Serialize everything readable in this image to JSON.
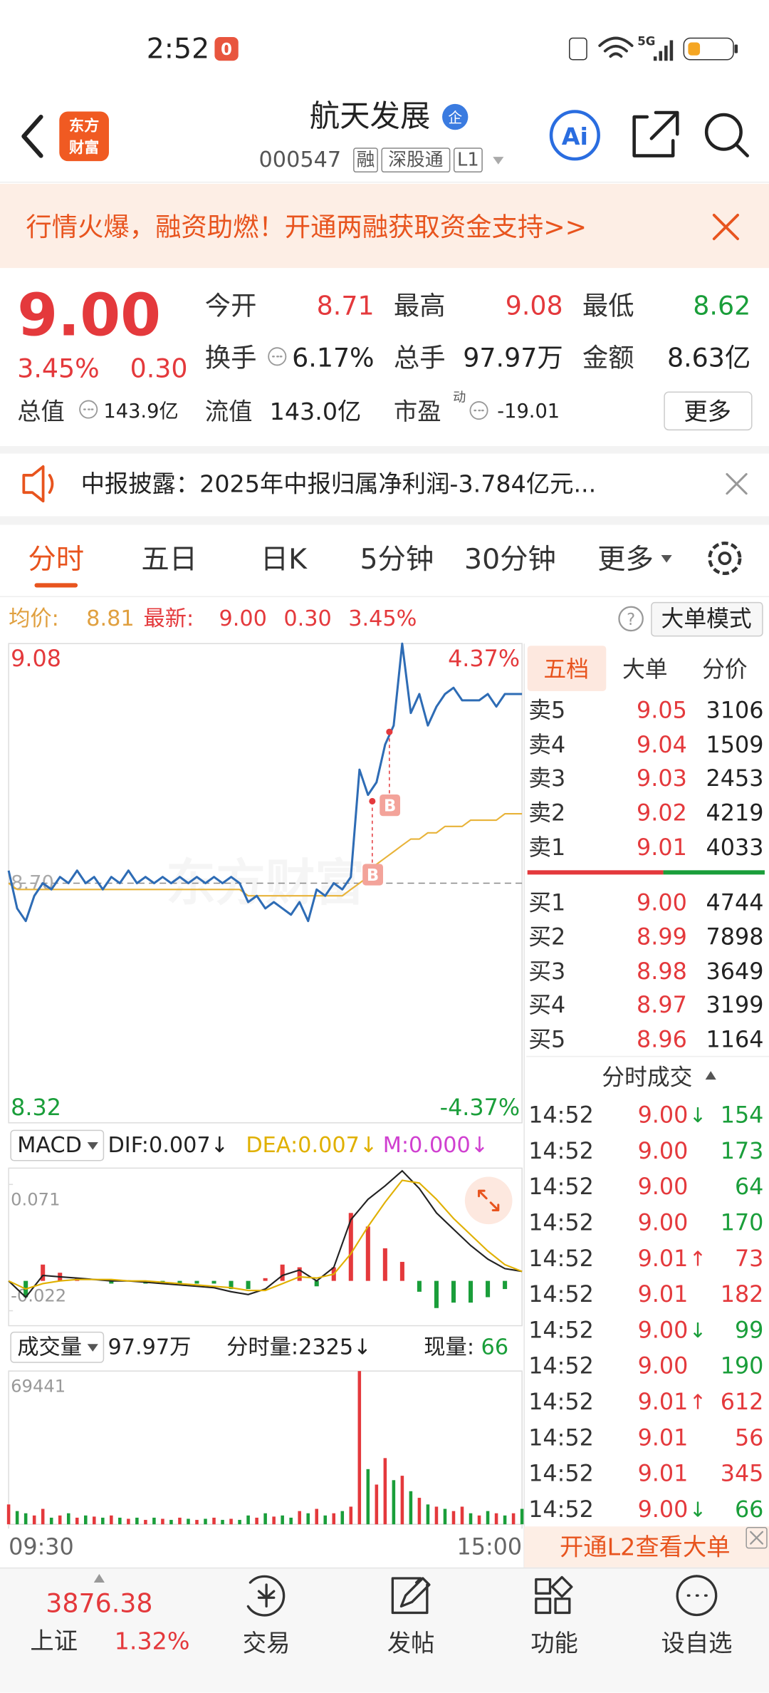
{
  "status_bar": {
    "time": "2:52",
    "badge": "0",
    "network": "5G"
  },
  "header": {
    "logo": [
      "东方",
      "财富"
    ],
    "title": "航天发展",
    "title_badge": "企",
    "code": "000547",
    "tags": [
      "融",
      "深股通",
      "L1"
    ],
    "ai": "Ai"
  },
  "banner": {
    "text": "行情火爆，融资助燃！开通两融获取资金支持>>"
  },
  "quote": {
    "price": "9.00",
    "change_pct": "3.45%",
    "change": "0.30",
    "fields": [
      {
        "label": "今开",
        "value": "8.71",
        "color": "#e4393c"
      },
      {
        "label": "最高",
        "value": "9.08",
        "color": "#e4393c"
      },
      {
        "label": "最低",
        "value": "8.62",
        "color": "#1a9e3a"
      },
      {
        "label": "换手",
        "value": "6.17%"
      },
      {
        "label": "总手",
        "value": "97.97万"
      },
      {
        "label": "金额",
        "value": "8.63亿"
      }
    ],
    "market_cap": {
      "label": "总值",
      "value": "143.9亿"
    },
    "float_cap": {
      "label": "流值",
      "value": "143.0亿"
    },
    "pe": {
      "label": "市盈",
      "sup": "动",
      "value": "-19.01"
    },
    "more": "更多"
  },
  "notice": {
    "text": "中报披露：2025年中报归属净利润-3.784亿元..."
  },
  "tabs": [
    "分时",
    "五日",
    "日K",
    "5分钟",
    "30分钟",
    "更多"
  ],
  "info_line": {
    "avg_label": "均价:",
    "avg": "8.81",
    "latest_label": "最新:",
    "latest": "9.00",
    "change": "0.30",
    "change_pct": "3.45%",
    "help": "?",
    "mode": "大单模式"
  },
  "chart_data": [
    {
      "type": "line",
      "x": [
        0,
        4,
        8,
        12,
        16,
        20,
        24,
        28,
        32,
        36,
        40,
        44,
        48,
        52,
        56,
        60,
        64,
        68,
        72,
        76,
        80,
        84,
        88,
        92,
        96,
        100,
        104,
        108,
        112,
        116,
        120,
        124,
        128,
        132,
        136,
        140,
        144,
        148,
        152,
        156,
        160,
        164,
        168,
        172,
        176,
        180,
        184,
        188,
        192,
        196,
        200,
        204,
        208,
        212,
        216,
        220,
        224,
        228,
        232,
        236,
        240
      ],
      "xlim": [
        0,
        240
      ],
      "ylim": [
        8.32,
        9.08
      ],
      "yticks": [
        9.08,
        8.32
      ],
      "y2lim": [
        -4.37,
        4.37
      ],
      "y2ticks": [
        {
          "value": 4.37,
          "label": "4.37%"
        },
        {
          "value": -4.37,
          "label": "-4.37%"
        }
      ],
      "reference": {
        "value": 8.7,
        "label": "8.70"
      },
      "watermark": "东方财富",
      "series": [
        {
          "color": "#2e6cb5",
          "values": [
            8.72,
            8.66,
            8.64,
            8.68,
            8.7,
            8.69,
            8.71,
            8.7,
            8.72,
            8.7,
            8.71,
            8.69,
            8.71,
            8.7,
            8.72,
            8.7,
            8.71,
            8.7,
            8.71,
            8.7,
            8.71,
            8.7,
            8.71,
            8.7,
            8.71,
            8.7,
            8.71,
            8.7,
            8.67,
            8.68,
            8.66,
            8.67,
            8.66,
            8.65,
            8.67,
            8.64,
            8.69,
            8.68,
            8.7,
            8.69,
            8.71,
            8.88,
            8.84,
            8.86,
            8.92,
            8.95,
            9.08,
            8.97,
            9.0,
            8.95,
            8.98,
            9.0,
            9.01,
            8.99,
            8.99,
            8.99,
            9.0,
            8.98,
            9.0,
            9.0,
            9.0
          ]
        },
        {
          "color": "#e8b339",
          "values": [
            8.7,
            8.69,
            8.69,
            8.69,
            8.69,
            8.69,
            8.69,
            8.69,
            8.69,
            8.69,
            8.69,
            8.69,
            8.69,
            8.69,
            8.69,
            8.69,
            8.69,
            8.69,
            8.69,
            8.69,
            8.69,
            8.69,
            8.69,
            8.69,
            8.69,
            8.69,
            8.69,
            8.69,
            8.68,
            8.68,
            8.68,
            8.68,
            8.68,
            8.68,
            8.68,
            8.68,
            8.68,
            8.68,
            8.68,
            8.68,
            8.69,
            8.7,
            8.71,
            8.73,
            8.74,
            8.75,
            8.76,
            8.77,
            8.77,
            8.78,
            8.78,
            8.79,
            8.79,
            8.79,
            8.8,
            8.8,
            8.8,
            8.8,
            8.81,
            8.81,
            8.81
          ]
        }
      ],
      "annotations": [
        {
          "x": 170,
          "y": 8.83,
          "label": "B"
        },
        {
          "x": 178,
          "y": 8.94,
          "label": "B"
        }
      ]
    },
    {
      "type": "macd",
      "title": "MACD",
      "x": [
        0,
        8,
        16,
        24,
        32,
        40,
        48,
        56,
        64,
        72,
        80,
        88,
        96,
        104,
        112,
        120,
        128,
        136,
        144,
        152,
        160,
        168,
        176,
        184,
        192,
        200,
        208,
        216,
        224,
        232,
        240
      ],
      "xlim": [
        0,
        240
      ],
      "ylim": [
        -0.033,
        0.083
      ],
      "yticks": [
        0.071,
        -0.022
      ],
      "series": [
        {
          "name": "DIF:0.007↓",
          "color": "#222222",
          "values": [
            0.0,
            -0.012,
            0.004,
            0.003,
            0.002,
            0.001,
            0.0,
            0.0,
            -0.001,
            -0.002,
            -0.003,
            -0.004,
            -0.005,
            -0.008,
            -0.01,
            -0.006,
            0.004,
            0.008,
            0.0,
            0.01,
            0.045,
            0.06,
            0.07,
            0.081,
            0.068,
            0.05,
            0.038,
            0.026,
            0.016,
            0.009,
            0.007
          ]
        },
        {
          "name": "DEA:0.007↓",
          "color": "#e0b000",
          "values": [
            0.0,
            -0.006,
            -0.002,
            0.0,
            0.001,
            0.001,
            0.001,
            0.0,
            0.0,
            -0.001,
            -0.002,
            -0.003,
            -0.004,
            -0.005,
            -0.007,
            -0.007,
            -0.002,
            0.003,
            0.002,
            0.005,
            0.02,
            0.04,
            0.058,
            0.074,
            0.072,
            0.06,
            0.046,
            0.034,
            0.022,
            0.012,
            0.007
          ]
        },
        {
          "name": "M:0.000↓",
          "color": "#d040d0",
          "up_color": "#e4393c",
          "down_color": "#1a9e3a",
          "values": [
            0.0,
            -0.012,
            0.012,
            0.006,
            0.002,
            0.0,
            -0.002,
            0.0,
            -0.002,
            -0.002,
            -0.002,
            -0.002,
            -0.002,
            -0.006,
            -0.006,
            0.002,
            0.012,
            0.01,
            -0.004,
            0.01,
            0.05,
            0.04,
            0.024,
            0.014,
            -0.008,
            -0.02,
            -0.016,
            -0.016,
            -0.012,
            -0.006,
            0.0
          ]
        }
      ]
    },
    {
      "type": "bar",
      "title": "成交量",
      "total": "97.97万",
      "minute_volume": "分时量:2325↓",
      "current_label": "现量:",
      "current": "66",
      "x": [
        0,
        4,
        8,
        12,
        16,
        20,
        24,
        28,
        32,
        36,
        40,
        44,
        48,
        52,
        56,
        60,
        64,
        68,
        72,
        76,
        80,
        84,
        88,
        92,
        96,
        100,
        104,
        108,
        112,
        116,
        120,
        124,
        128,
        132,
        136,
        140,
        144,
        148,
        152,
        156,
        160,
        164,
        168,
        172,
        176,
        180,
        184,
        188,
        192,
        196,
        200,
        204,
        208,
        212,
        216,
        220,
        224,
        228,
        232,
        236,
        240
      ],
      "xlim": [
        0,
        240
      ],
      "xticks": [
        {
          "value": 0,
          "label": "09:30"
        },
        {
          "value": 240,
          "label": "15:00"
        }
      ],
      "ylim": [
        0,
        69441
      ],
      "yticks": [
        69441
      ],
      "values": [
        9000,
        6000,
        5000,
        4000,
        7000,
        3000,
        4000,
        5000,
        3000,
        4000,
        3500,
        3000,
        4000,
        3000,
        2500,
        3000,
        2000,
        3000,
        2500,
        2000,
        3000,
        2500,
        2000,
        2500,
        3000,
        2000,
        2500,
        2000,
        4000,
        3000,
        5000,
        3500,
        4000,
        3000,
        6000,
        5000,
        7000,
        4000,
        5000,
        6000,
        8000,
        69441,
        25000,
        18000,
        30000,
        20000,
        22000,
        15000,
        12000,
        9000,
        8000,
        7000,
        6000,
        8000,
        5000,
        4000,
        6000,
        5000,
        4000,
        5000,
        7000
      ],
      "colors": [
        "#e4393c",
        "#1a9e3a",
        "#1a9e3a",
        "#e4393c",
        "#e4393c",
        "#1a9e3a",
        "#e4393c",
        "#1a9e3a",
        "#e4393c",
        "#1a9e3a",
        "#e4393c",
        "#1a9e3a",
        "#e4393c",
        "#1a9e3a",
        "#e4393c",
        "#1a9e3a",
        "#e4393c",
        "#1a9e3a",
        "#e4393c",
        "#1a9e3a",
        "#e4393c",
        "#1a9e3a",
        "#e4393c",
        "#1a9e3a",
        "#e4393c",
        "#1a9e3a",
        "#e4393c",
        "#1a9e3a",
        "#1a9e3a",
        "#e4393c",
        "#1a9e3a",
        "#e4393c",
        "#1a9e3a",
        "#1a9e3a",
        "#e4393c",
        "#1a9e3a",
        "#e4393c",
        "#1a9e3a",
        "#e4393c",
        "#1a9e3a",
        "#e4393c",
        "#e4393c",
        "#1a9e3a",
        "#e4393c",
        "#e4393c",
        "#1a9e3a",
        "#e4393c",
        "#1a9e3a",
        "#e4393c",
        "#1a9e3a",
        "#e4393c",
        "#1a9e3a",
        "#e4393c",
        "#e4393c",
        "#1a9e3a",
        "#e4393c",
        "#1a9e3a",
        "#e4393c",
        "#1a9e3a",
        "#e4393c",
        "#1a9e3a"
      ]
    }
  ],
  "order_book": {
    "tabs": [
      "五档",
      "大单",
      "分价"
    ],
    "asks": [
      {
        "label": "卖5",
        "price": "9.05",
        "volume": "3106"
      },
      {
        "label": "卖4",
        "price": "9.04",
        "volume": "1509"
      },
      {
        "label": "卖3",
        "price": "9.03",
        "volume": "2453"
      },
      {
        "label": "卖2",
        "price": "9.02",
        "volume": "4219"
      },
      {
        "label": "卖1",
        "price": "9.01",
        "volume": "4033"
      }
    ],
    "bids": [
      {
        "label": "买1",
        "price": "9.00",
        "volume": "4744"
      },
      {
        "label": "买2",
        "price": "8.99",
        "volume": "7898"
      },
      {
        "label": "买3",
        "price": "8.98",
        "volume": "3649"
      },
      {
        "label": "买4",
        "price": "8.97",
        "volume": "3199"
      },
      {
        "label": "买5",
        "price": "8.96",
        "volume": "1164"
      }
    ]
  },
  "trades": {
    "title": "分时成交",
    "rows": [
      {
        "time": "14:52",
        "price": "9.00",
        "arrow": "↓",
        "volume": "154",
        "color": "#1a9e3a"
      },
      {
        "time": "14:52",
        "price": "9.00",
        "volume": "173",
        "color": "#1a9e3a"
      },
      {
        "time": "14:52",
        "price": "9.00",
        "volume": "64",
        "color": "#1a9e3a"
      },
      {
        "time": "14:52",
        "price": "9.00",
        "volume": "170",
        "color": "#1a9e3a"
      },
      {
        "time": "14:52",
        "price": "9.01",
        "arrow": "↑",
        "volume": "73",
        "color": "#e4393c"
      },
      {
        "time": "14:52",
        "price": "9.01",
        "volume": "182",
        "color": "#e4393c"
      },
      {
        "time": "14:52",
        "price": "9.00",
        "arrow": "↓",
        "volume": "99",
        "color": "#1a9e3a"
      },
      {
        "time": "14:52",
        "price": "9.00",
        "volume": "190",
        "color": "#1a9e3a"
      },
      {
        "time": "14:52",
        "price": "9.01",
        "arrow": "↑",
        "volume": "612",
        "color": "#e4393c"
      },
      {
        "time": "14:52",
        "price": "9.01",
        "volume": "56",
        "color": "#e4393c"
      },
      {
        "time": "14:52",
        "price": "9.01",
        "volume": "345",
        "color": "#e4393c"
      },
      {
        "time": "14:52",
        "price": "9.00",
        "arrow": "↓",
        "volume": "66",
        "color": "#1a9e3a"
      }
    ],
    "footer": "开通L2查看大单"
  },
  "bottom_nav": {
    "index": {
      "value": "3876.38",
      "name": "上证",
      "change": "1.32%"
    },
    "items": [
      "交易",
      "发帖",
      "功能",
      "设自选"
    ]
  }
}
